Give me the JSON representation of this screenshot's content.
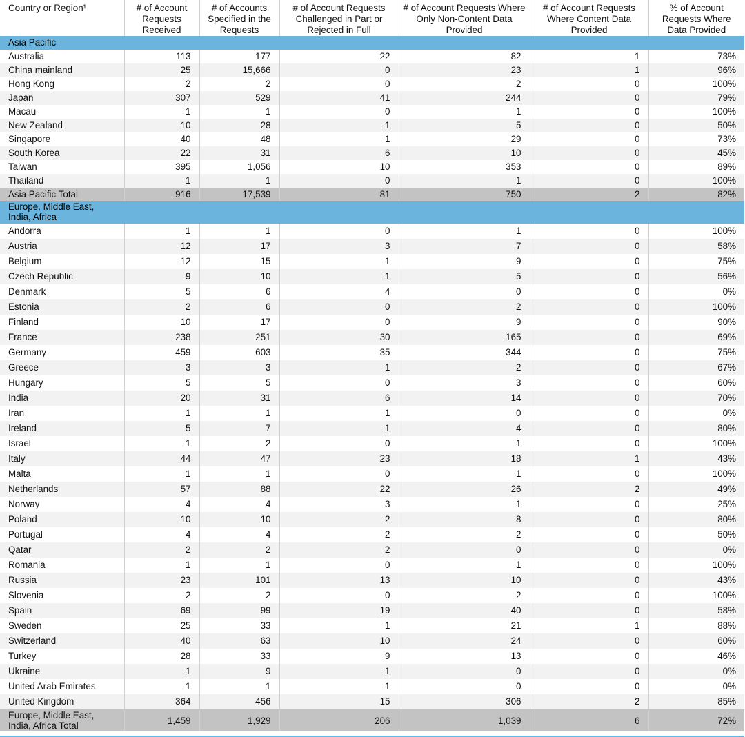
{
  "headers": [
    "Country or Region¹",
    "# of Account Requests Received",
    "# of Accounts Specified in the Requests",
    "# of Account Requests Challenged in Part or Rejected in Full",
    "# of Account Requests Where Only Non-Content Data Provided",
    "# of Account Requests Where Content Data Provided",
    "% of Account Requests Where Data Provided"
  ],
  "sections": [
    {
      "name": "Asia Pacific",
      "rows": [
        [
          "Australia",
          "113",
          "177",
          "22",
          "82",
          "1",
          "73%"
        ],
        [
          "China mainland",
          "25",
          "15,666",
          "0",
          "23",
          "1",
          "96%"
        ],
        [
          "Hong Kong",
          "2",
          "2",
          "0",
          "2",
          "0",
          "100%"
        ],
        [
          "Japan",
          "307",
          "529",
          "41",
          "244",
          "0",
          "79%"
        ],
        [
          "Macau",
          "1",
          "1",
          "0",
          "1",
          "0",
          "100%"
        ],
        [
          "New Zealand",
          "10",
          "28",
          "1",
          "5",
          "0",
          "50%"
        ],
        [
          "Singapore",
          "40",
          "48",
          "1",
          "29",
          "0",
          "73%"
        ],
        [
          "South Korea",
          "22",
          "31",
          "6",
          "10",
          "0",
          "45%"
        ],
        [
          "Taiwan",
          "395",
          "1,056",
          "10",
          "353",
          "0",
          "89%"
        ],
        [
          "Thailand",
          "1",
          "1",
          "0",
          "1",
          "0",
          "100%"
        ]
      ],
      "total": [
        "Asia Pacific Total",
        "916",
        "17,539",
        "81",
        "750",
        "2",
        "82%"
      ]
    },
    {
      "name": "Europe, Middle East,\nIndia, Africa",
      "rows": [
        [
          "Andorra",
          "1",
          "1",
          "0",
          "1",
          "0",
          "100%"
        ],
        [
          "Austria",
          "12",
          "17",
          "3",
          "7",
          "0",
          "58%"
        ],
        [
          "Belgium",
          "12",
          "15",
          "1",
          "9",
          "0",
          "75%"
        ],
        [
          "Czech Republic",
          "9",
          "10",
          "1",
          "5",
          "0",
          "56%"
        ],
        [
          "Denmark",
          "5",
          "6",
          "4",
          "0",
          "0",
          "0%"
        ],
        [
          "Estonia",
          "2",
          "6",
          "0",
          "2",
          "0",
          "100%"
        ],
        [
          "Finland",
          "10",
          "17",
          "0",
          "9",
          "0",
          "90%"
        ],
        [
          "France",
          "238",
          "251",
          "30",
          "165",
          "0",
          "69%"
        ],
        [
          "Germany",
          "459",
          "603",
          "35",
          "344",
          "0",
          "75%"
        ],
        [
          "Greece",
          "3",
          "3",
          "1",
          "2",
          "0",
          "67%"
        ],
        [
          "Hungary",
          "5",
          "5",
          "0",
          "3",
          "0",
          "60%"
        ],
        [
          "India",
          "20",
          "31",
          "6",
          "14",
          "0",
          "70%"
        ],
        [
          "Iran",
          "1",
          "1",
          "1",
          "0",
          "0",
          "0%"
        ],
        [
          "Ireland",
          "5",
          "7",
          "1",
          "4",
          "0",
          "80%"
        ],
        [
          "Israel",
          "1",
          "2",
          "0",
          "1",
          "0",
          "100%"
        ],
        [
          "Italy",
          "44",
          "47",
          "23",
          "18",
          "1",
          "43%"
        ],
        [
          "Malta",
          "1",
          "1",
          "0",
          "1",
          "0",
          "100%"
        ],
        [
          "Netherlands",
          "57",
          "88",
          "22",
          "26",
          "2",
          "49%"
        ],
        [
          "Norway",
          "4",
          "4",
          "3",
          "1",
          "0",
          "25%"
        ],
        [
          "Poland",
          "10",
          "10",
          "2",
          "8",
          "0",
          "80%"
        ],
        [
          "Portugal",
          "4",
          "4",
          "2",
          "2",
          "0",
          "50%"
        ],
        [
          "Qatar",
          "2",
          "2",
          "2",
          "0",
          "0",
          "0%"
        ],
        [
          "Romania",
          "1",
          "1",
          "0",
          "1",
          "0",
          "100%"
        ],
        [
          "Russia",
          "23",
          "101",
          "13",
          "10",
          "0",
          "43%"
        ],
        [
          "Slovenia",
          "2",
          "2",
          "0",
          "2",
          "0",
          "100%"
        ],
        [
          "Spain",
          "69",
          "99",
          "19",
          "40",
          "0",
          "58%"
        ],
        [
          "Sweden",
          "25",
          "33",
          "1",
          "21",
          "1",
          "88%"
        ],
        [
          "Switzerland",
          "40",
          "63",
          "10",
          "24",
          "0",
          "60%"
        ],
        [
          "Turkey",
          "28",
          "33",
          "9",
          "13",
          "0",
          "46%"
        ],
        [
          "Ukraine",
          "1",
          "9",
          "1",
          "0",
          "0",
          "0%"
        ],
        [
          "United Arab Emirates",
          "1",
          "1",
          "1",
          "0",
          "0",
          "0%"
        ],
        [
          "United Kingdom",
          "364",
          "456",
          "15",
          "306",
          "2",
          "85%"
        ]
      ],
      "total": [
        "Europe, Middle East,\nIndia, Africa Total",
        "1,459",
        "1,929",
        "206",
        "1,039",
        "6",
        "72%"
      ]
    }
  ]
}
